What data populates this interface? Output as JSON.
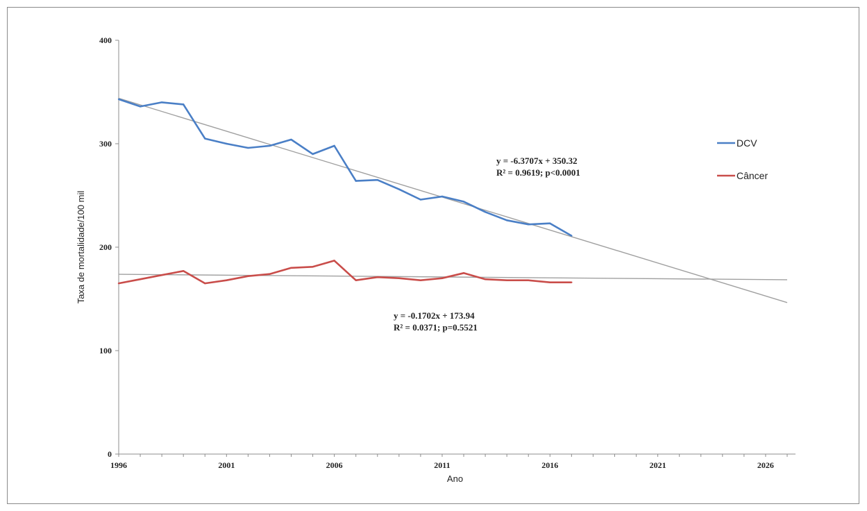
{
  "chart_data": {
    "type": "line",
    "xlabel": "Ano",
    "ylabel": "Taxa de mortalidade/100 mil",
    "xlim": [
      1996,
      2027
    ],
    "ylim": [
      0,
      400
    ],
    "x_ticks": [
      1996,
      2001,
      2006,
      2011,
      2016,
      2021,
      2026
    ],
    "y_ticks": [
      0,
      100,
      200,
      300,
      400
    ],
    "grid": false,
    "legend_position": "right",
    "x": [
      1996,
      1997,
      1998,
      1999,
      2000,
      2001,
      2002,
      2003,
      2004,
      2005,
      2006,
      2007,
      2008,
      2009,
      2010,
      2011,
      2012,
      2013,
      2014,
      2015,
      2016,
      2017
    ],
    "series": [
      {
        "name": "DCV",
        "color": "#4a7fc6",
        "values": [
          343,
          336,
          340,
          338,
          305,
          300,
          296,
          298,
          304,
          290,
          298,
          264,
          265,
          256,
          246,
          249,
          244,
          234,
          226,
          222,
          223,
          211
        ]
      },
      {
        "name": "Câncer",
        "color": "#c94d4a",
        "values": [
          165,
          169,
          173,
          177,
          165,
          168,
          172,
          174,
          180,
          181,
          187,
          168,
          171,
          170,
          168,
          170,
          175,
          169,
          168,
          168,
          166,
          166
        ]
      }
    ],
    "trendlines": [
      {
        "series": "DCV",
        "slope": -6.3707,
        "intercept": 350.32,
        "color": "#a0a0a0",
        "x_range": [
          1996,
          2027
        ],
        "equation": "y = -6.3707x + 350.32",
        "stats": "R² = 0.9619; p<0.0001"
      },
      {
        "series": "Câncer",
        "slope": -0.1702,
        "intercept": 173.94,
        "color": "#a0a0a0",
        "x_range": [
          1996,
          2027
        ],
        "equation": "y = -0.1702x + 173.94",
        "stats": "R² = 0.0371; p=0.5521"
      }
    ]
  }
}
